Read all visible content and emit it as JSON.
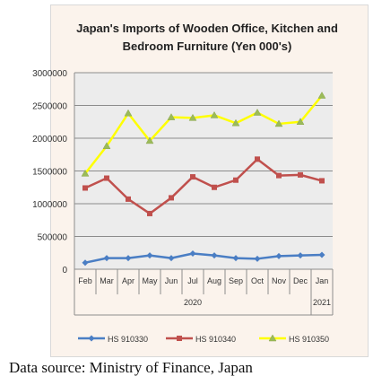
{
  "source_note": "Data source: Ministry of Finance, Japan",
  "colors": {
    "frame_bg": "#fbf3ec",
    "plot_bg": "#ececec",
    "HS 910330": "#4a7ec4",
    "HS 910340": "#c0504d",
    "HS 910350": "#ffff00"
  },
  "chart_data": {
    "type": "line",
    "title_lines": [
      "Japan's Imports of  Wooden  Office, Kitchen and",
      "Bedroom Furniture (Yen 000's)"
    ],
    "categories": [
      "Feb",
      "Mar",
      "Apr",
      "May",
      "Jun",
      "Jul",
      "Aug",
      "Sep",
      "Oct",
      "Nov",
      "Dec",
      "Jan"
    ],
    "year_labels": [
      {
        "label": "2020"
      },
      {
        "label": "2021"
      }
    ],
    "ylim": [
      0,
      3000000
    ],
    "y_ticks": [
      0,
      500000,
      1000000,
      1500000,
      2000000,
      2500000,
      3000000
    ],
    "y_tick_labels": [
      "0",
      "500000",
      "1000000",
      "1500000",
      "2000000",
      "2500000",
      "3000000"
    ],
    "grid": true,
    "legend_position": "bottom",
    "series": [
      {
        "name": "HS 910330",
        "marker": "diamond",
        "values": [
          100000,
          170000,
          170000,
          210000,
          170000,
          240000,
          210000,
          170000,
          160000,
          200000,
          210000,
          220000
        ]
      },
      {
        "name": "HS 910340",
        "marker": "square",
        "values": [
          1240000,
          1390000,
          1070000,
          850000,
          1090000,
          1410000,
          1250000,
          1360000,
          1680000,
          1430000,
          1440000,
          1350000
        ]
      },
      {
        "name": "HS 910350",
        "marker": "triangle",
        "values": [
          1460000,
          1880000,
          2380000,
          1960000,
          2320000,
          2310000,
          2350000,
          2230000,
          2390000,
          2220000,
          2250000,
          2650000
        ]
      }
    ]
  }
}
